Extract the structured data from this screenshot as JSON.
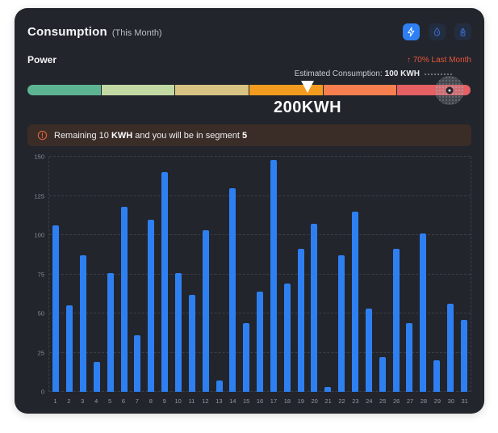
{
  "header": {
    "title": "Consumption",
    "subtitle": "(This Month)",
    "tabs": [
      {
        "name": "electricity",
        "icon": "lightning-icon",
        "active": true
      },
      {
        "name": "water",
        "icon": "water-drop-icon",
        "active": false
      },
      {
        "name": "gas",
        "icon": "gas-bottle-icon",
        "active": false
      }
    ]
  },
  "power_section": {
    "label": "Power",
    "trend_arrow": "↑",
    "trend_text": " 70% Last Month",
    "trend_color": "#e8563c"
  },
  "gauge": {
    "segments": [
      {
        "color": "#5db493"
      },
      {
        "color": "#c3d9a4"
      },
      {
        "color": "#d8c383"
      },
      {
        "color": "#f29b1e"
      },
      {
        "color": "#f77e4e"
      },
      {
        "color": "#e55f63"
      }
    ],
    "current_value_label": "200KWH",
    "current_position_pct": 63.1,
    "estimated_label": "Estimated Consumption:",
    "estimated_value": "100 KWH",
    "estimated_marker_position_pct": 95.1
  },
  "alert": {
    "pre": "Remaining 10 ",
    "bold1": "KWH",
    "mid": " and you will be in segment ",
    "bold2": "5"
  },
  "chart_data": {
    "type": "bar",
    "title": "Daily power consumption (KWH) by day of month",
    "categories": [
      1,
      2,
      3,
      4,
      5,
      6,
      7,
      8,
      9,
      10,
      11,
      12,
      13,
      14,
      15,
      16,
      17,
      18,
      19,
      20,
      21,
      22,
      23,
      24,
      25,
      26,
      27,
      28,
      29,
      30,
      31
    ],
    "values": [
      106,
      55,
      87,
      19,
      76,
      118,
      36,
      110,
      140,
      76,
      62,
      103,
      7,
      130,
      44,
      64,
      148,
      69,
      91,
      107,
      3,
      87,
      115,
      53,
      22,
      91,
      44,
      101,
      20,
      56,
      46
    ],
    "bar_color": "#2e80f2",
    "xlabel": "",
    "ylabel": "",
    "ylabel_ticks": [
      0,
      25,
      50,
      75,
      100,
      125,
      150
    ],
    "ylim": [
      0,
      150
    ],
    "grid": true,
    "legend": false
  }
}
